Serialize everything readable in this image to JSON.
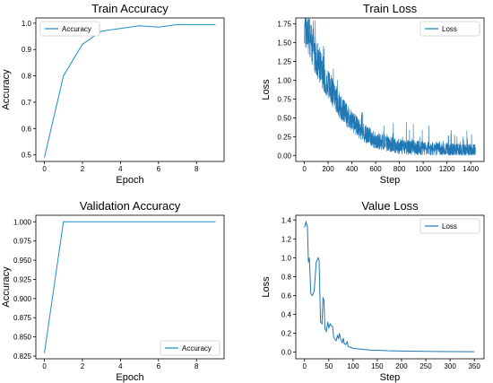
{
  "chart_data": [
    {
      "type": "line",
      "title": "Train Accuracy",
      "xlabel": "Epoch",
      "ylabel": "Accuracy",
      "xlim": [
        -0.45,
        9.45
      ],
      "ylim": [
        0.475,
        1.02
      ],
      "xticks": [
        0,
        2,
        4,
        6,
        8
      ],
      "yticks": [
        0.5,
        0.6,
        0.7,
        0.8,
        0.9,
        1.0
      ],
      "ytick_labels": [
        "0.5",
        "0.6",
        "0.7",
        "0.8",
        "0.9",
        "1.0"
      ],
      "legend": "top-left",
      "grid": false,
      "series": [
        {
          "name": "Accuracy",
          "color": "#1f8ec5",
          "x": [
            0,
            1,
            2,
            3,
            4,
            5,
            6,
            7,
            8,
            9
          ],
          "y": [
            0.49,
            0.8,
            0.92,
            0.97,
            0.98,
            0.99,
            0.985,
            0.995,
            0.995,
            0.995
          ]
        }
      ]
    },
    {
      "type": "line",
      "title": "Train Loss",
      "xlabel": "Step",
      "ylabel": "Loss",
      "xlim": [
        -72,
        1512
      ],
      "ylim": [
        -0.08,
        1.83
      ],
      "xticks": [
        0,
        200,
        400,
        600,
        800,
        1000,
        1200,
        1400
      ],
      "yticks": [
        0.0,
        0.25,
        0.5,
        0.75,
        1.0,
        1.25,
        1.5,
        1.75
      ],
      "ytick_labels": [
        "0.00",
        "0.25",
        "0.50",
        "0.75",
        "1.00",
        "1.25",
        "1.50",
        "1.75"
      ],
      "legend": "top-right",
      "grid": false,
      "series": [
        {
          "name": "Loss",
          "color": "#1f77b4",
          "x_range": [
            0,
            1440
          ],
          "trend": "noisy exponential decay from ~1.7 to ~0.05, spikes up to ~0.45",
          "anchor_x": [
            0,
            50,
            100,
            200,
            300,
            400,
            500,
            600,
            800,
            1000,
            1200,
            1400,
            1440
          ],
          "anchor_y": [
            1.72,
            1.55,
            1.3,
            0.95,
            0.65,
            0.45,
            0.3,
            0.2,
            0.12,
            0.09,
            0.07,
            0.06,
            0.06
          ]
        }
      ]
    },
    {
      "type": "line",
      "title": "Validation Accuracy",
      "xlabel": "Epoch",
      "ylabel": "Accuracy",
      "xlim": [
        -0.45,
        9.45
      ],
      "ylim": [
        0.8215,
        1.0085
      ],
      "xticks": [
        0,
        2,
        4,
        6,
        8
      ],
      "yticks": [
        0.825,
        0.85,
        0.875,
        0.9,
        0.925,
        0.95,
        0.975,
        1.0
      ],
      "ytick_labels": [
        "0.825",
        "0.850",
        "0.875",
        "0.900",
        "0.925",
        "0.950",
        "0.975",
        "1.000"
      ],
      "legend": "bottom-right",
      "grid": false,
      "series": [
        {
          "name": "Accuracy",
          "color": "#1f8ec5",
          "x": [
            0,
            1,
            2,
            3,
            4,
            5,
            6,
            7,
            8,
            9
          ],
          "y": [
            0.829,
            1.0,
            1.0,
            1.0,
            1.0,
            1.0,
            1.0,
            1.0,
            1.0,
            1.0
          ]
        }
      ]
    },
    {
      "type": "line",
      "title": "Value Loss",
      "xlabel": "Step",
      "ylabel": "Loss",
      "xlim": [
        -18,
        370
      ],
      "ylim": [
        -0.07,
        1.45
      ],
      "xticks": [
        0,
        50,
        100,
        150,
        200,
        250,
        300,
        350
      ],
      "yticks": [
        0.0,
        0.2,
        0.4,
        0.6,
        0.8,
        1.0,
        1.2,
        1.4
      ],
      "ytick_labels": [
        "0.0",
        "0.2",
        "0.4",
        "0.6",
        "0.8",
        "1.0",
        "1.2",
        "1.4"
      ],
      "legend": "top-right",
      "grid": false,
      "series": [
        {
          "name": "Loss",
          "color": "#1f77b4",
          "x": [
            0,
            3,
            6,
            8,
            10,
            13,
            16,
            20,
            24,
            28,
            30,
            33,
            36,
            38,
            40,
            42,
            45,
            48,
            50,
            53,
            55,
            58,
            60,
            62,
            65,
            68,
            70,
            72,
            75,
            78,
            80,
            82,
            85,
            88,
            90,
            95,
            100,
            110,
            120,
            130,
            140,
            150,
            170,
            200,
            250,
            300,
            350
          ],
          "y": [
            1.32,
            1.38,
            1.33,
            0.95,
            1.0,
            0.62,
            0.6,
            0.65,
            0.95,
            1.0,
            0.97,
            0.32,
            0.3,
            0.58,
            0.55,
            0.25,
            0.22,
            0.32,
            0.26,
            0.3,
            0.28,
            0.27,
            0.16,
            0.14,
            0.12,
            0.18,
            0.14,
            0.2,
            0.13,
            0.1,
            0.15,
            0.09,
            0.08,
            0.11,
            0.06,
            0.05,
            0.04,
            0.035,
            0.03,
            0.025,
            0.02,
            0.02,
            0.015,
            0.012,
            0.008,
            0.006,
            0.005
          ]
        }
      ]
    }
  ]
}
